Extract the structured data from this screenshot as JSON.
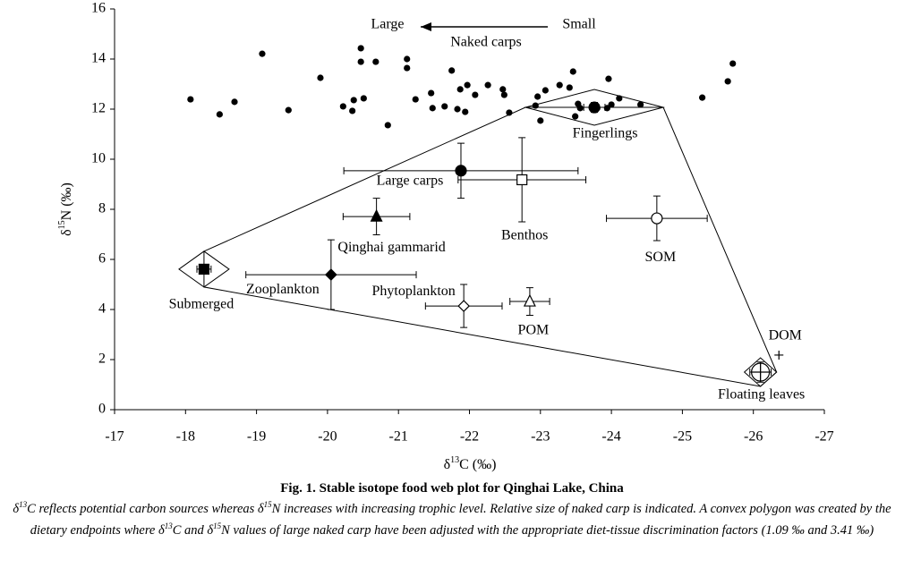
{
  "chart_data": {
    "type": "scatter",
    "x_label": [
      "δ",
      "13",
      "C (‰)"
    ],
    "y_label": [
      "δ",
      "15",
      "N (‰)"
    ],
    "xlim": [
      -17,
      -27
    ],
    "xticks": [
      -17,
      -18,
      -19,
      -20,
      -21,
      -22,
      -23,
      -24,
      -25,
      -26,
      -27
    ],
    "ylim": [
      0,
      16
    ],
    "yticks": [
      0,
      2,
      4,
      6,
      8,
      10,
      12,
      14,
      16
    ],
    "annotations": {
      "large": "Large",
      "small": "Small"
    },
    "series": [
      {
        "name": "Naked carps",
        "marker": "dot",
        "color": "#000000",
        "x": [
          -18.07,
          -18.48,
          -18.69,
          -19.08,
          -19.45,
          -19.9,
          -20.22,
          -20.37,
          -20.35,
          -20.47,
          -20.47,
          -20.51,
          -20.68,
          -20.85,
          -21.12,
          -21.12,
          -21.24,
          -21.46,
          -21.48,
          -21.65,
          -21.75,
          -21.87,
          -21.83,
          -21.97,
          -21.94,
          -22.08,
          -22.26,
          -22.47,
          -22.49,
          -22.56,
          -22.93,
          -22.96,
          -23.0,
          -23.07,
          -23.27,
          -23.41,
          -23.46,
          -23.49,
          -23.53,
          -23.56,
          -23.8,
          -23.96,
          -23.94,
          -24.0,
          -24.11,
          -24.41,
          -25.28,
          -25.64,
          -25.71
        ],
        "y": [
          12.39,
          11.79,
          12.29,
          14.21,
          11.96,
          13.25,
          12.11,
          12.36,
          11.93,
          14.43,
          13.89,
          12.43,
          13.89,
          11.36,
          14.0,
          13.64,
          12.39,
          12.64,
          12.04,
          12.11,
          13.54,
          12.79,
          12.0,
          12.96,
          11.89,
          12.57,
          12.96,
          12.79,
          12.57,
          11.86,
          12.14,
          12.5,
          11.54,
          12.75,
          12.96,
          12.86,
          13.5,
          11.71,
          12.21,
          12.04,
          12.04,
          13.21,
          12.04,
          12.18,
          12.43,
          12.18,
          12.46,
          13.11,
          13.82
        ]
      },
      {
        "name": "Fingerlings",
        "marker": "big-dot",
        "endpoint": true,
        "x": [
          -23.76
        ],
        "y": [
          12.07
        ],
        "xerr": [
          0.15
        ],
        "yerr": [
          0.2
        ]
      },
      {
        "name": "Large carps",
        "marker": "big-dot",
        "x": [
          -21.88
        ],
        "y": [
          9.54
        ],
        "xerr": [
          1.65
        ],
        "yerr": [
          1.1
        ]
      },
      {
        "name": "Benthos",
        "marker": "square-open",
        "x": [
          -22.74
        ],
        "y": [
          9.18
        ],
        "xerr": [
          0.9
        ],
        "yerr": [
          1.68
        ]
      },
      {
        "name": "Qinghai gammarid",
        "marker": "triangle",
        "x": [
          -20.69
        ],
        "y": [
          7.71
        ],
        "xerr": [
          0.47
        ],
        "yerr": [
          0.73
        ]
      },
      {
        "name": "SOM",
        "marker": "circle-open",
        "x": [
          -24.64
        ],
        "y": [
          7.64
        ],
        "xerr": [
          0.71
        ],
        "yerr": [
          0.89
        ]
      },
      {
        "name": "Submerged",
        "marker": "square",
        "endpoint": true,
        "x": [
          -18.26
        ],
        "y": [
          5.61
        ],
        "xerr": [
          0.1
        ],
        "yerr": [
          0.15
        ]
      },
      {
        "name": "Zooplankton",
        "marker": "diamond",
        "x": [
          -20.05
        ],
        "y": [
          5.39
        ],
        "xerr": [
          1.2
        ],
        "yerr": [
          1.39
        ]
      },
      {
        "name": "Phytoplankton",
        "marker": "diamond-open",
        "x": [
          -21.92
        ],
        "y": [
          4.14
        ],
        "xerr": [
          0.54
        ],
        "yerr": [
          0.86
        ]
      },
      {
        "name": "POM",
        "marker": "triangle-open",
        "x": [
          -22.85
        ],
        "y": [
          4.32
        ],
        "xerr": [
          0.28
        ],
        "yerr": [
          0.55
        ]
      },
      {
        "name": "DOM",
        "marker": "plus",
        "x": [
          -26.36
        ],
        "y": [
          2.18
        ]
      },
      {
        "name": "Floating leaves",
        "marker": "circle-cross",
        "endpoint": true,
        "x": [
          -26.1
        ],
        "y": [
          1.5
        ],
        "xerr": [
          0.15
        ],
        "yerr": [
          0.4
        ]
      }
    ]
  },
  "caption": {
    "title": "Fig. 1. Stable isotope food web plot for Qinghai Lake, China",
    "parts": [
      "δ",
      "13",
      "C reflects potential carbon sources whereas δ",
      "15",
      "N increases with increasing trophic level. Relative size of naked carp is indicated. A convex polygon was created by the dietary endpoints where δ",
      "13",
      "C and δ",
      "15",
      "N values of large naked carp have been adjusted with the appropriate diet-tissue discrimination factors (1.09 ‰ and 3.41 ‰)"
    ]
  }
}
